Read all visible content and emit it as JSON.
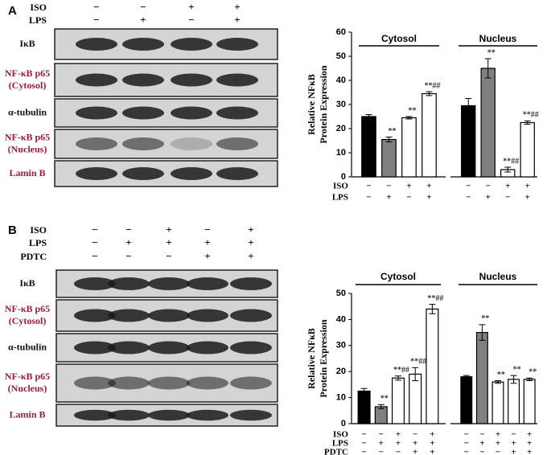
{
  "panels": [
    {
      "label": "A",
      "treatments": [
        {
          "name": "ISO",
          "signs": [
            "−",
            "−",
            "+",
            "+"
          ]
        },
        {
          "name": "LPS",
          "signs": [
            "−",
            "+",
            "−",
            "+"
          ]
        }
      ],
      "blots": [
        {
          "label": [
            "IκB"
          ],
          "color": "#111111"
        },
        {
          "label": [
            "NF-κB p65",
            "(Cytosol)"
          ],
          "color": "#9b1b3c"
        },
        {
          "label": [
            "α-tubulin"
          ],
          "color": "#111111"
        },
        {
          "label": [
            "NF-κB p65",
            "(Nucleus)"
          ],
          "color": "#9b1b3c"
        },
        {
          "label": [
            "Lamin B"
          ],
          "color": "#9b1b3c"
        }
      ]
    },
    {
      "label": "B",
      "treatments": [
        {
          "name": "ISO",
          "signs": [
            "−",
            "−",
            "+",
            "−",
            "+"
          ]
        },
        {
          "name": "LPS",
          "signs": [
            "−",
            "+",
            "+",
            "+",
            "+"
          ]
        },
        {
          "name": "PDTC",
          "signs": [
            "−",
            "−",
            "−",
            "+",
            "+"
          ]
        }
      ],
      "blots": [
        {
          "label": [
            "IκB"
          ],
          "color": "#111111"
        },
        {
          "label": [
            "NF-κB p65",
            "(Cytosol)"
          ],
          "color": "#9b1b3c"
        },
        {
          "label": [
            "α-tubulin"
          ],
          "color": "#111111"
        },
        {
          "label": [
            "NF-κB p65",
            "(Nucleus)"
          ],
          "color": "#9b1b3c"
        },
        {
          "label": [
            "Lamin B"
          ],
          "color": "#9b1b3c"
        }
      ]
    }
  ],
  "chart_data": [
    {
      "type": "bar",
      "y_label": [
        "Relative NFκB",
        "Protein Expression"
      ],
      "ylim": [
        0,
        60
      ],
      "yticks": [
        0,
        10,
        20,
        30,
        40,
        50,
        60
      ],
      "bar_colors": [
        "#000000",
        "#808080",
        "#ffffff",
        "#ffffff"
      ],
      "groups": [
        {
          "label": "Cytosol",
          "values": [
            25,
            15.5,
            24.5,
            34.5
          ],
          "errors": [
            0.8,
            1,
            0.5,
            0.8
          ],
          "annotations": [
            null,
            "**",
            "**",
            "**##"
          ]
        },
        {
          "label": "Nucleus",
          "values": [
            29.5,
            45,
            3,
            22.5
          ],
          "errors": [
            3,
            4,
            1,
            0.7
          ],
          "annotations": [
            null,
            "**",
            "**##",
            "**##"
          ]
        }
      ],
      "treatments": [
        {
          "name": "ISO",
          "signs": [
            "−",
            "−",
            "+",
            "+"
          ]
        },
        {
          "name": "LPS",
          "signs": [
            "−",
            "+",
            "−",
            "+"
          ]
        }
      ]
    },
    {
      "type": "bar",
      "y_label": [
        "Relative NFκB",
        "Protein Expression"
      ],
      "ylim": [
        0,
        50
      ],
      "yticks": [
        0,
        10,
        20,
        30,
        40,
        50
      ],
      "bar_colors": [
        "#000000",
        "#808080",
        "#ffffff",
        "#ffffff",
        "#ffffff"
      ],
      "groups": [
        {
          "label": "Cytosol",
          "values": [
            12.5,
            6.5,
            17.5,
            19,
            44
          ],
          "errors": [
            1,
            0.8,
            0.8,
            2.5,
            1.8
          ],
          "annotations": [
            null,
            "**",
            "**##",
            "**##",
            "**##"
          ]
        },
        {
          "label": "Nucleus",
          "values": [
            18,
            35,
            16,
            17,
            17
          ],
          "errors": [
            0.5,
            3,
            0.5,
            1.5,
            0.5
          ],
          "annotations": [
            null,
            "**",
            "**",
            "**",
            "**"
          ]
        }
      ],
      "treatments": [
        {
          "name": "ISO",
          "signs": [
            "−",
            "−",
            "+",
            "−",
            "+"
          ]
        },
        {
          "name": "LPS",
          "signs": [
            "−",
            "+",
            "+",
            "+",
            "+"
          ]
        },
        {
          "name": "PDTC",
          "signs": [
            "−",
            "−",
            "−",
            "+",
            "+"
          ]
        }
      ]
    }
  ]
}
